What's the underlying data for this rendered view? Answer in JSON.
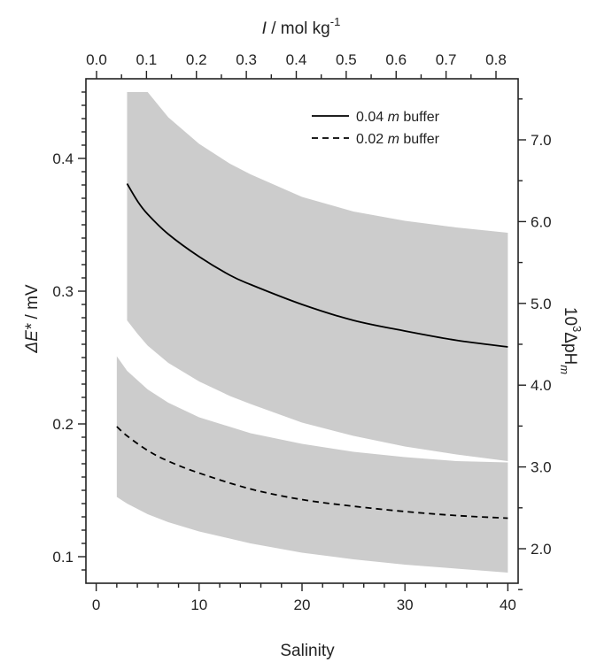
{
  "chart_data": {
    "type": "line",
    "title": "",
    "xlabel": "Salinity",
    "ylabel_left": {
      "main": "ΔE*",
      "suffix": " / mV"
    },
    "ylabel_right": {
      "sup": "3",
      "main": "ΔpH",
      "sub": "m",
      "prefix": "10"
    },
    "xlabel_top": {
      "main": "I",
      "unit": " / mol kg",
      "sup": "-1"
    },
    "xlim": [
      -1,
      41
    ],
    "ylim": [
      0.08,
      0.46
    ],
    "x_ticks": [
      "0",
      "10",
      "20",
      "30",
      "40"
    ],
    "x_tick_values": [
      0,
      10,
      20,
      30,
      40
    ],
    "y_ticks": [
      "0.1",
      "0.2",
      "0.3",
      "0.4"
    ],
    "y_tick_values": [
      0.1,
      0.2,
      0.3,
      0.4
    ],
    "top_ticks": [
      "0.0",
      "0.1",
      "0.2",
      "0.3",
      "0.4",
      "0.5",
      "0.6",
      "0.7",
      "0.8"
    ],
    "top_tick_values": [
      0.0,
      0.1,
      0.2,
      0.3,
      0.4,
      0.5,
      0.6,
      0.7,
      0.8
    ],
    "right_ticks": [
      "2.0",
      "3.0",
      "4.0",
      "5.0",
      "6.0",
      "7.0"
    ],
    "right_tick_values": [
      2.0,
      3.0,
      4.0,
      5.0,
      6.0,
      7.0
    ],
    "series": [
      {
        "name": "0.04 m buffer",
        "style": "solid",
        "color": "#000000",
        "x": [
          3,
          4,
          5,
          7,
          10,
          13,
          15,
          20,
          25,
          30,
          35,
          40
        ],
        "y": [
          0.381,
          0.368,
          0.358,
          0.343,
          0.326,
          0.312,
          0.305,
          0.29,
          0.278,
          0.27,
          0.263,
          0.258
        ],
        "band_upper": [
          0.45,
          0.45,
          0.45,
          0.431,
          0.411,
          0.396,
          0.388,
          0.371,
          0.36,
          0.353,
          0.348,
          0.344
        ],
        "band_lower": [
          0.278,
          0.268,
          0.259,
          0.246,
          0.232,
          0.221,
          0.215,
          0.201,
          0.191,
          0.183,
          0.177,
          0.172
        ]
      },
      {
        "name": "0.02 m buffer",
        "style": "dashed",
        "color": "#000000",
        "x": [
          2,
          3,
          5,
          7,
          10,
          15,
          20,
          25,
          30,
          35,
          40
        ],
        "y": [
          0.198,
          0.191,
          0.18,
          0.172,
          0.163,
          0.151,
          0.143,
          0.138,
          0.134,
          0.131,
          0.129
        ],
        "band_upper": [
          0.251,
          0.24,
          0.226,
          0.216,
          0.205,
          0.193,
          0.185,
          0.179,
          0.175,
          0.172,
          0.171
        ],
        "band_lower": [
          0.145,
          0.14,
          0.132,
          0.126,
          0.119,
          0.11,
          0.103,
          0.098,
          0.094,
          0.091,
          0.088
        ]
      }
    ],
    "band_color": "#cccccc",
    "legend": "top-right",
    "grid": false
  }
}
